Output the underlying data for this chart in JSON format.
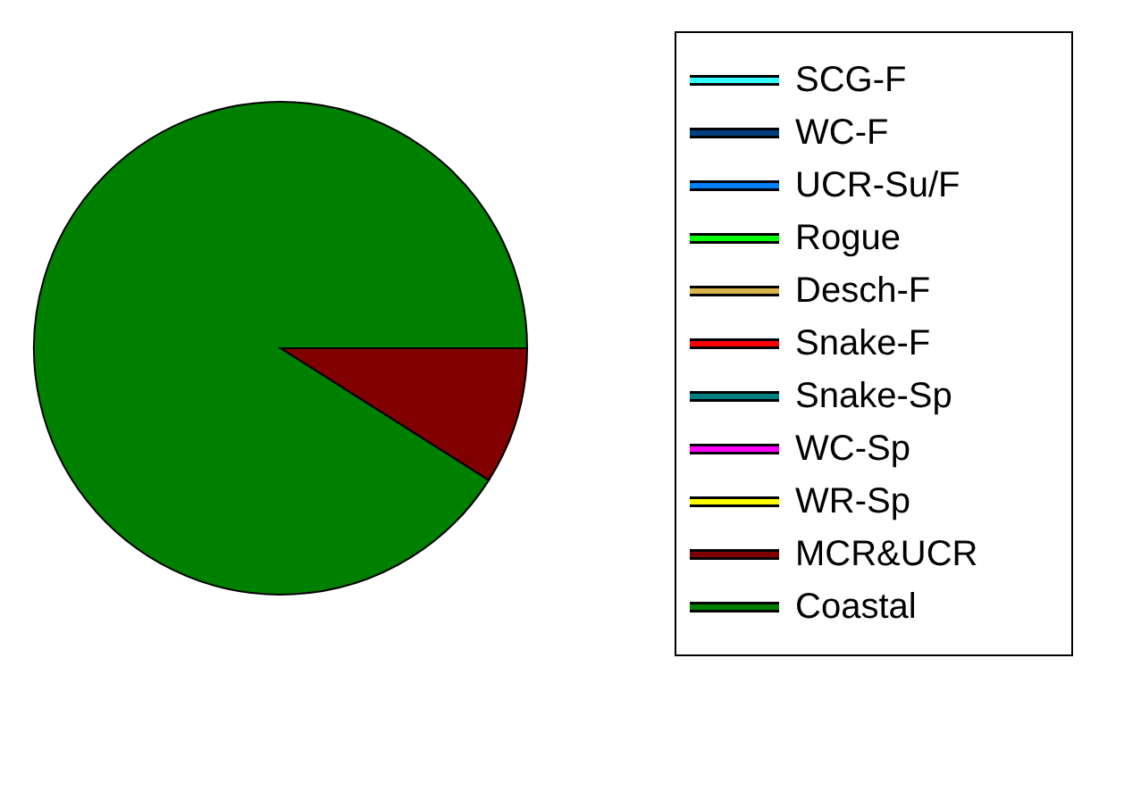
{
  "chart_data": {
    "type": "pie",
    "categories": [
      "SCG-F",
      "WC-F",
      "UCR-Su/F",
      "Rogue",
      "Desch-F",
      "Snake-F",
      "Snake-Sp",
      "WC-Sp",
      "WR-Sp",
      "MCR&UCR",
      "Coastal"
    ],
    "values": [
      0,
      0,
      0,
      0,
      0,
      0,
      0,
      0,
      0,
      9,
      91
    ],
    "colors": [
      "#33ffff",
      "#003f7f",
      "#0080ff",
      "#00ff00",
      "#d9b44a",
      "#ff0000",
      "#008080",
      "#ff00ff",
      "#ffff00",
      "#800000",
      "#008000"
    ],
    "legend": "right"
  }
}
